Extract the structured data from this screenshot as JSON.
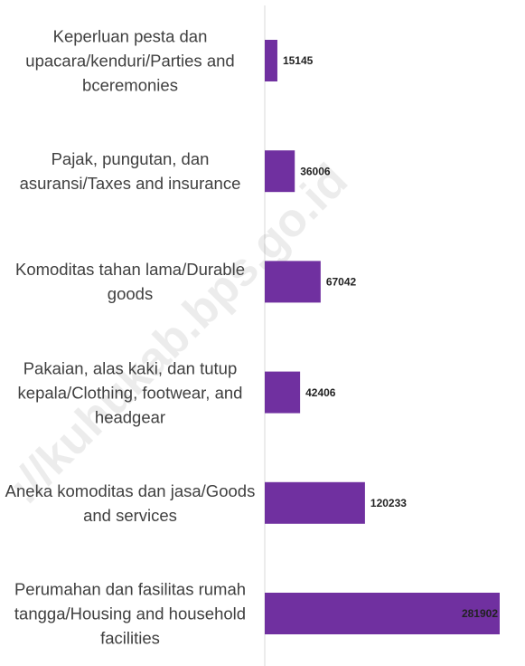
{
  "chart_data": {
    "type": "barh",
    "categories": [
      "Keperluan pesta dan upacara/kenduri/Parties and bceremonies",
      "Pajak, pungutan, dan asuransi/Taxes and insurance",
      "Komoditas tahan lama/Durable goods",
      "Pakaian, alas kaki, dan tutup kepala/Clothing, footwear, and headgear",
      "Aneka komoditas dan jasa/Goods and services",
      "Perumahan dan fasilitas rumah tangga/Housing and household facilities"
    ],
    "values": [
      15145,
      36006,
      67042,
      42406,
      120233,
      281902
    ],
    "color": "#7030a0",
    "watermark": "://kuhukab.bps.go.id"
  }
}
